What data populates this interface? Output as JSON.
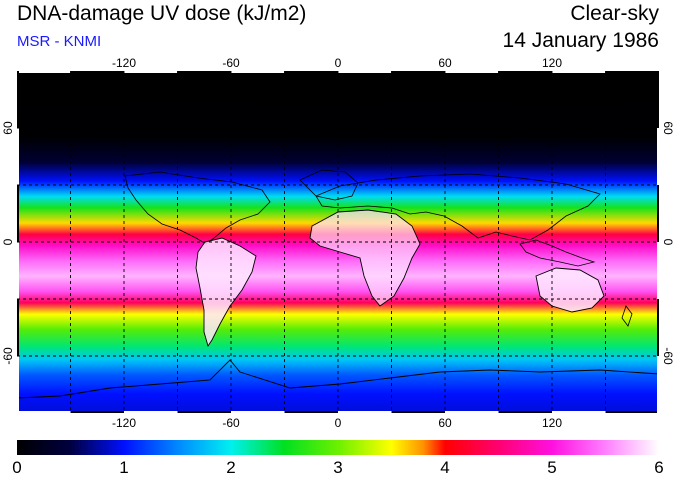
{
  "header": {
    "title": "DNA-damage UV dose (kJ/m2)",
    "source": "MSR - KNMI",
    "condition": "Clear-sky",
    "date": "14 January 1986"
  },
  "map": {
    "lon_ticks": [
      -120,
      -60,
      0,
      60,
      120
    ],
    "lat_ticks": [
      60,
      0,
      -60
    ],
    "lon_range": [
      -180,
      180
    ],
    "lat_range": [
      -90,
      90
    ],
    "lat_profile": [
      {
        "lat": 90,
        "dose": 0.0
      },
      {
        "lat": 55,
        "dose": 0.02
      },
      {
        "lat": 42,
        "dose": 0.4
      },
      {
        "lat": 32,
        "dose": 1.0
      },
      {
        "lat": 24,
        "dose": 1.9
      },
      {
        "lat": 18,
        "dose": 2.6
      },
      {
        "lat": 10,
        "dose": 3.6
      },
      {
        "lat": 4,
        "dose": 4.3
      },
      {
        "lat": -2,
        "dose": 4.9
      },
      {
        "lat": -10,
        "dose": 5.4
      },
      {
        "lat": -18,
        "dose": 5.7
      },
      {
        "lat": -26,
        "dose": 5.3
      },
      {
        "lat": -32,
        "dose": 4.4
      },
      {
        "lat": -38,
        "dose": 3.5
      },
      {
        "lat": -46,
        "dose": 2.9
      },
      {
        "lat": -55,
        "dose": 2.3
      },
      {
        "lat": -62,
        "dose": 1.8
      },
      {
        "lat": -70,
        "dose": 1.3
      },
      {
        "lat": -80,
        "dose": 1.0
      },
      {
        "lat": -90,
        "dose": 0.9
      }
    ]
  },
  "colorbar": {
    "min": 0,
    "max": 6,
    "tick_values": [
      0,
      1,
      2,
      3,
      4,
      5,
      6
    ],
    "tick_labels": [
      "0",
      "1",
      "2",
      "3",
      "4",
      "5",
      "6"
    ],
    "stops": [
      {
        "v": 0.0,
        "color": "#000000"
      },
      {
        "v": 0.5,
        "color": "#000040"
      },
      {
        "v": 1.0,
        "color": "#0010ff"
      },
      {
        "v": 1.5,
        "color": "#0088ff"
      },
      {
        "v": 2.0,
        "color": "#00f0f0"
      },
      {
        "v": 2.5,
        "color": "#00e020"
      },
      {
        "v": 3.0,
        "color": "#6cf000"
      },
      {
        "v": 3.5,
        "color": "#ffff00"
      },
      {
        "v": 3.8,
        "color": "#ff9000"
      },
      {
        "v": 4.0,
        "color": "#ff0000"
      },
      {
        "v": 4.5,
        "color": "#ff0070"
      },
      {
        "v": 5.0,
        "color": "#ff10e0"
      },
      {
        "v": 5.5,
        "color": "#ff80ff"
      },
      {
        "v": 6.0,
        "color": "#ffffff"
      }
    ]
  }
}
